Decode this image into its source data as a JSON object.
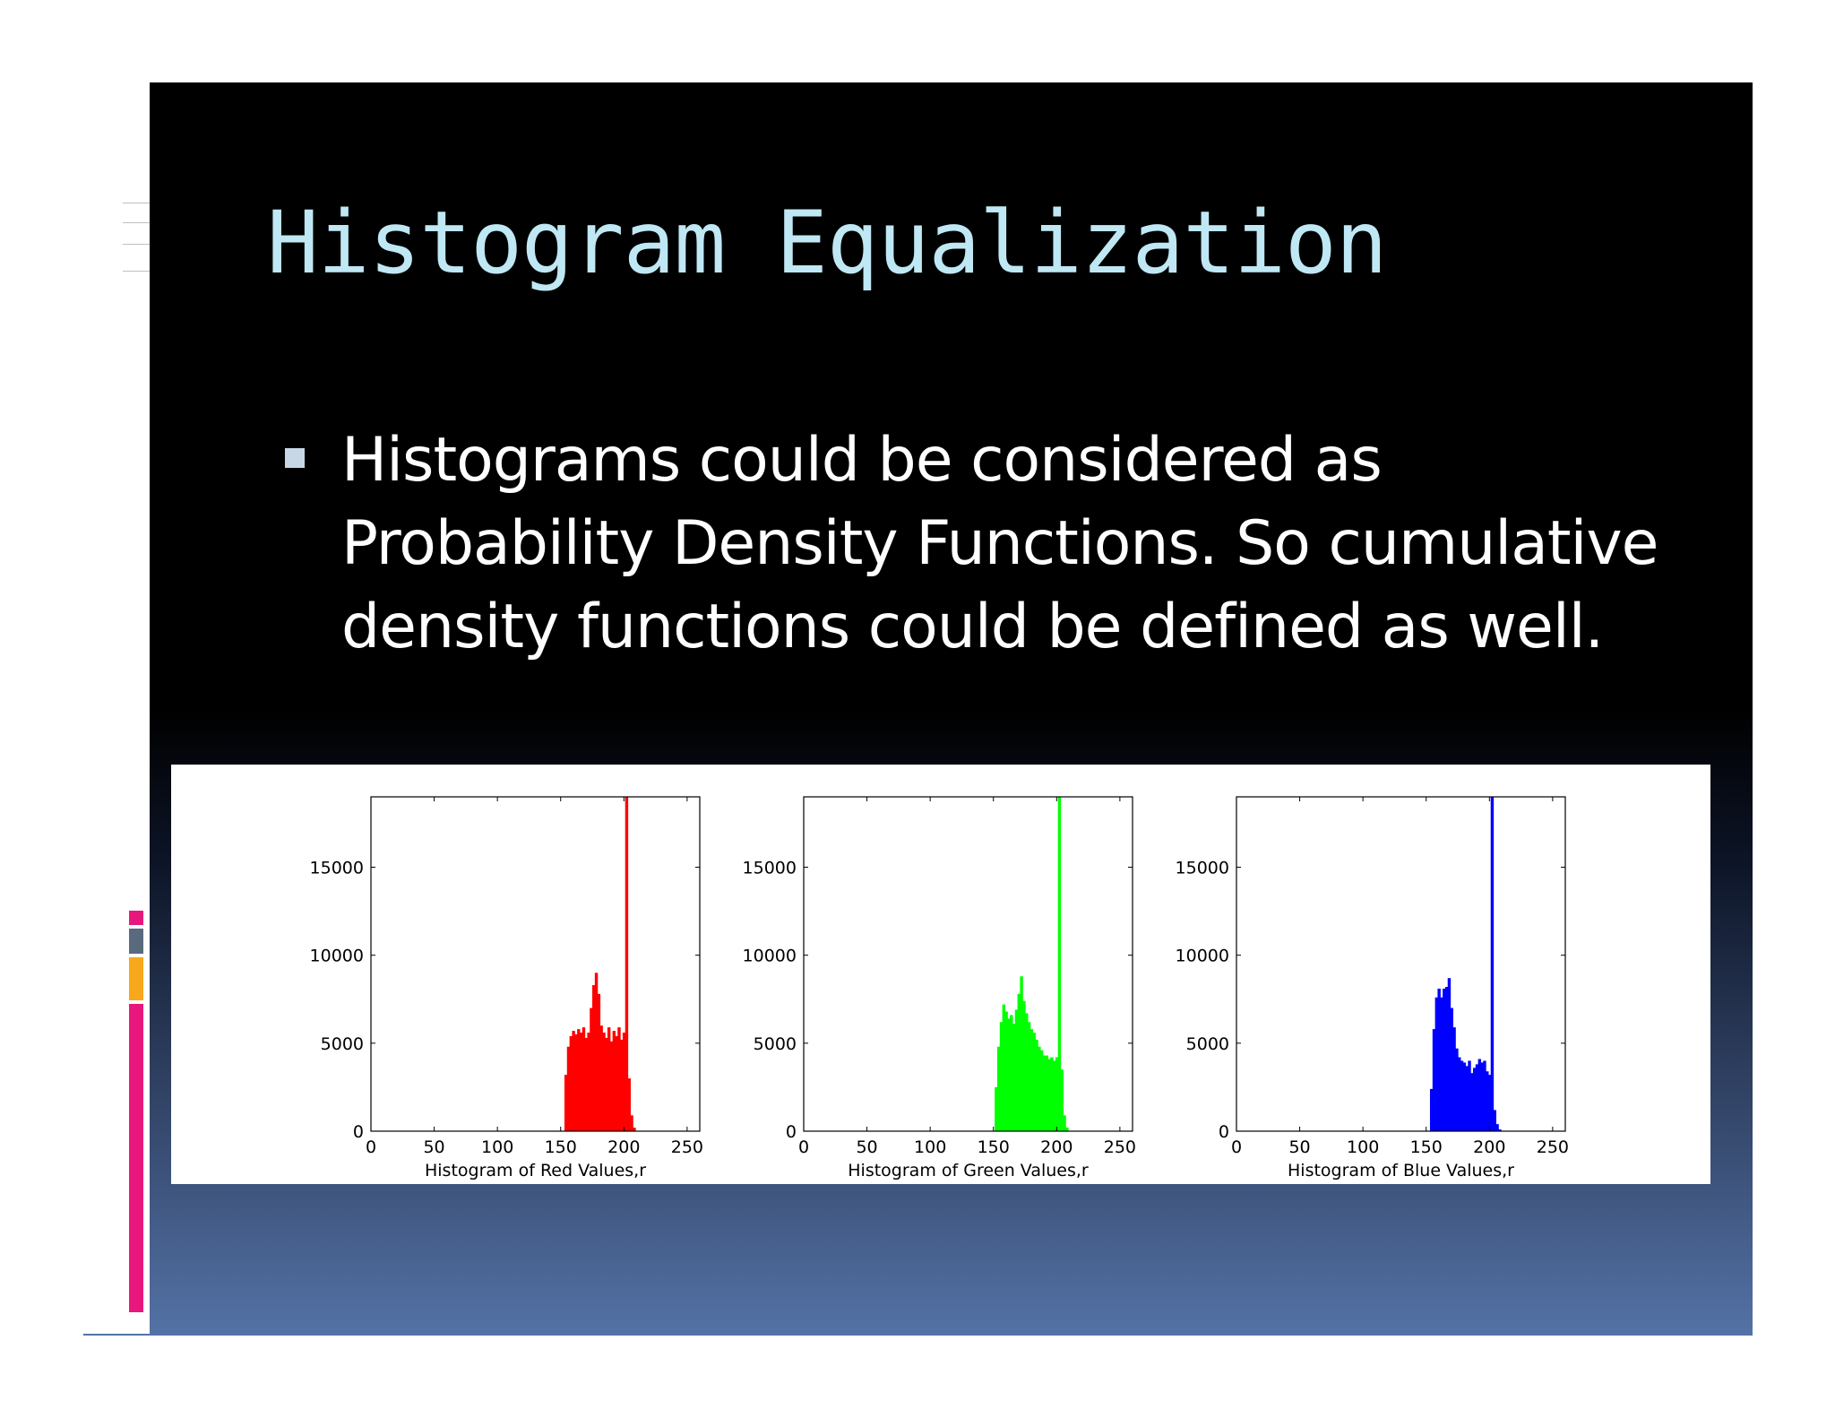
{
  "slide": {
    "title": "Histogram Equalization",
    "bullet_text": "Histograms could be considered as Probability Density Functions. So cumulative density functions could be defined as well."
  },
  "colors": {
    "title": "#bfe7f4",
    "text": "#ffffff",
    "deco_pink": "#e8177d",
    "deco_gray": "#5a6a7e",
    "deco_orange": "#f7a81b"
  },
  "chart_data": [
    {
      "type": "bar",
      "title": "",
      "xlabel": "Histogram of Red Values,r",
      "ylabel": "",
      "color": "#ff0000",
      "xlim": [
        0,
        260
      ],
      "ylim": [
        0,
        19000
      ],
      "xticks": [
        0,
        50,
        100,
        150,
        200,
        250
      ],
      "yticks": [
        0,
        5000,
        10000,
        15000
      ],
      "x": [
        154,
        156,
        158,
        160,
        162,
        164,
        166,
        168,
        170,
        172,
        174,
        176,
        178,
        180,
        182,
        184,
        186,
        188,
        190,
        192,
        194,
        196,
        198,
        200,
        202,
        204,
        206,
        208
      ],
      "values": [
        3200,
        4800,
        5400,
        5700,
        5500,
        5800,
        5600,
        5900,
        5300,
        5600,
        7000,
        8300,
        9000,
        7800,
        6000,
        5600,
        5300,
        5900,
        5100,
        5700,
        5400,
        5900,
        5200,
        5600,
        19000,
        3000,
        900,
        200
      ]
    },
    {
      "type": "bar",
      "title": "",
      "xlabel": "Histogram of Green Values,r",
      "ylabel": "",
      "color": "#00ff00",
      "xlim": [
        0,
        260
      ],
      "ylim": [
        0,
        19000
      ],
      "xticks": [
        0,
        50,
        100,
        150,
        200,
        250
      ],
      "yticks": [
        0,
        5000,
        10000,
        15000
      ],
      "x": [
        152,
        154,
        156,
        158,
        160,
        162,
        164,
        166,
        168,
        170,
        172,
        174,
        176,
        178,
        180,
        182,
        184,
        186,
        188,
        190,
        192,
        194,
        196,
        198,
        200,
        202,
        204,
        206,
        208
      ],
      "values": [
        2500,
        4800,
        6200,
        7200,
        6800,
        6400,
        6600,
        6100,
        6900,
        7800,
        8800,
        7400,
        6700,
        6200,
        5800,
        5600,
        5200,
        4800,
        4600,
        4300,
        4300,
        4100,
        4200,
        4000,
        4200,
        19000,
        3500,
        900,
        200
      ]
    },
    {
      "type": "bar",
      "title": "",
      "xlabel": "Histogram of Blue Values,r",
      "ylabel": "",
      "color": "#0000ff",
      "xlim": [
        0,
        260
      ],
      "ylim": [
        0,
        19000
      ],
      "xticks": [
        0,
        50,
        100,
        150,
        200,
        250
      ],
      "yticks": [
        0,
        5000,
        10000,
        15000
      ],
      "x": [
        154,
        156,
        158,
        160,
        162,
        164,
        166,
        168,
        170,
        172,
        174,
        176,
        178,
        180,
        182,
        184,
        186,
        188,
        190,
        192,
        194,
        196,
        198,
        200,
        202,
        204,
        206,
        208
      ],
      "values": [
        2400,
        5800,
        7600,
        8100,
        7600,
        8100,
        8200,
        8700,
        7000,
        5900,
        4700,
        4200,
        4000,
        3900,
        3700,
        4000,
        3300,
        3600,
        3800,
        4100,
        3900,
        4000,
        3400,
        3200,
        19000,
        1200,
        400,
        100
      ]
    }
  ]
}
